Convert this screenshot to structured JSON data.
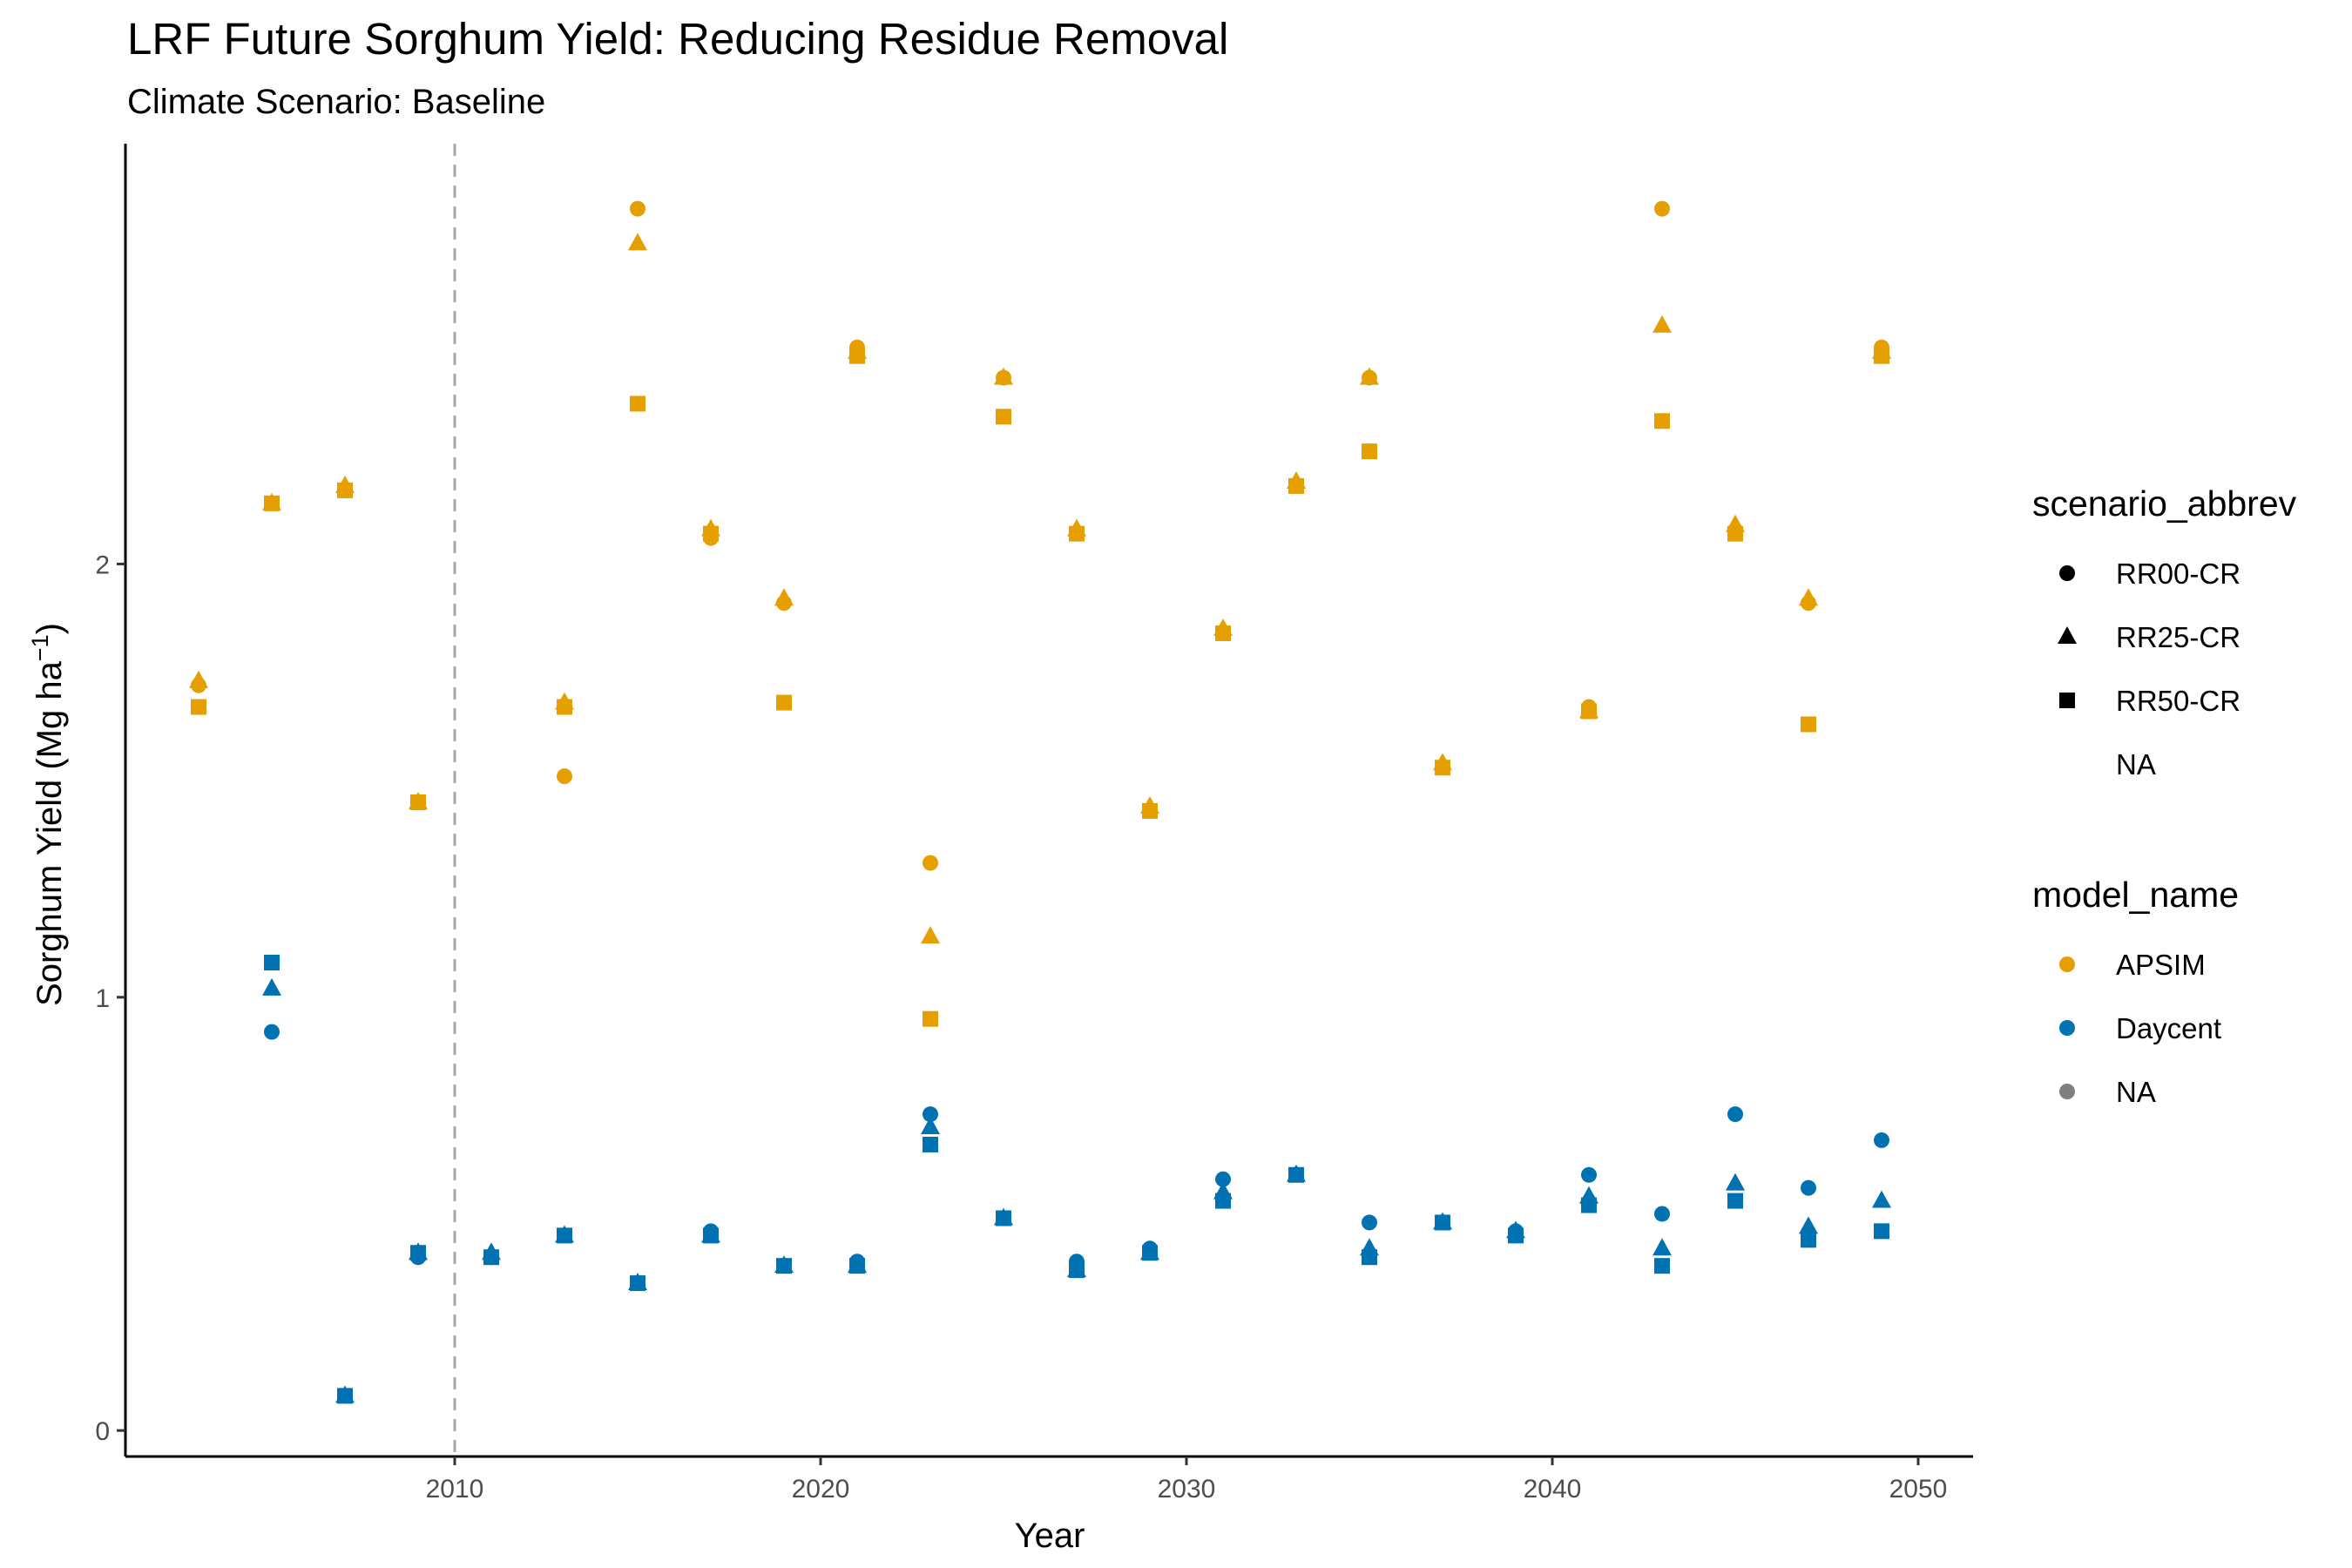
{
  "chart_data": {
    "type": "scatter",
    "title": "LRF Future Sorghum Yield: Reducing Residue Removal",
    "subtitle": "Climate Scenario: Baseline",
    "xlabel": "Year",
    "ylabel_main": "Sorghum Yield (Mg ha",
    "ylabel_sup": "−1",
    "ylabel_close": ")",
    "xlim": [
      2001,
      2051.5
    ],
    "ylim": [
      -0.06,
      2.97
    ],
    "x_ticks": [
      2010,
      2020,
      2030,
      2040,
      2050
    ],
    "y_ticks": [
      0,
      1,
      2
    ],
    "vline": {
      "x": 2010,
      "style": "dashed",
      "color": "#a6a6a6"
    },
    "grid": false,
    "legend_placement": "right",
    "legends": [
      {
        "title": "scenario_abbrev",
        "entries": [
          {
            "label": "RR00-CR",
            "shape": "circle"
          },
          {
            "label": "RR25-CR",
            "shape": "triangle"
          },
          {
            "label": "RR50-CR",
            "shape": "square"
          },
          {
            "label": "NA",
            "shape": "none"
          }
        ]
      },
      {
        "title": "model_name",
        "entries": [
          {
            "label": "APSIM",
            "color": "#E69F00"
          },
          {
            "label": "Daycent",
            "color": "#0072B2"
          },
          {
            "label": "NA",
            "color": "#7f7f7f"
          }
        ]
      }
    ],
    "colors": {
      "APSIM": "#E69F00",
      "Daycent": "#0072B2"
    },
    "shapes": {
      "RR00-CR": "circle",
      "RR25-CR": "triangle",
      "RR50-CR": "square"
    },
    "x": [
      2003,
      2005,
      2007,
      2009,
      2011,
      2013,
      2015,
      2017,
      2019,
      2021,
      2023,
      2025,
      2027,
      2029,
      2031,
      2033,
      2035,
      2037,
      2039,
      2041,
      2043,
      2045,
      2047,
      2049
    ],
    "series": [
      {
        "model": "APSIM",
        "scenario": "RR00-CR",
        "values": [
          1.72,
          2.14,
          2.17,
          1.45,
          null,
          1.51,
          2.82,
          2.06,
          1.91,
          2.5,
          1.31,
          2.43,
          2.07,
          1.43,
          1.84,
          2.18,
          2.43,
          1.53,
          null,
          1.67,
          2.82,
          2.07,
          1.91,
          2.5
        ]
      },
      {
        "model": "APSIM",
        "scenario": "RR25-CR",
        "values": [
          1.73,
          2.14,
          2.18,
          1.45,
          null,
          1.68,
          2.74,
          2.08,
          1.92,
          2.49,
          1.14,
          2.43,
          2.08,
          1.44,
          1.85,
          2.19,
          2.43,
          1.54,
          null,
          1.66,
          2.55,
          2.09,
          1.92,
          2.49
        ]
      },
      {
        "model": "APSIM",
        "scenario": "RR50-CR",
        "values": [
          1.67,
          2.14,
          2.17,
          1.45,
          null,
          1.67,
          2.37,
          2.07,
          1.68,
          2.48,
          0.95,
          2.34,
          2.07,
          1.43,
          1.84,
          2.18,
          2.26,
          1.53,
          null,
          1.66,
          2.33,
          2.07,
          1.63,
          2.48
        ]
      },
      {
        "model": "Daycent",
        "scenario": "RR00-CR",
        "values": [
          null,
          0.92,
          0.08,
          0.4,
          0.4,
          0.45,
          0.34,
          0.46,
          0.38,
          0.39,
          0.73,
          0.49,
          0.39,
          0.42,
          0.58,
          0.59,
          0.48,
          0.48,
          0.46,
          0.59,
          0.5,
          0.73,
          0.56,
          0.67
        ]
      },
      {
        "model": "Daycent",
        "scenario": "RR25-CR",
        "values": [
          null,
          1.02,
          0.08,
          0.41,
          0.41,
          0.45,
          0.34,
          0.45,
          0.38,
          0.38,
          0.7,
          0.49,
          0.37,
          0.41,
          0.55,
          0.59,
          0.42,
          0.48,
          0.46,
          0.54,
          0.42,
          0.57,
          0.47,
          0.53
        ]
      },
      {
        "model": "Daycent",
        "scenario": "RR50-CR",
        "values": [
          null,
          1.08,
          0.08,
          0.41,
          0.4,
          0.45,
          0.34,
          0.45,
          0.38,
          0.38,
          0.66,
          0.49,
          0.37,
          0.41,
          0.53,
          0.59,
          0.4,
          0.48,
          0.45,
          0.52,
          0.38,
          0.53,
          0.44,
          0.46
        ]
      }
    ]
  }
}
